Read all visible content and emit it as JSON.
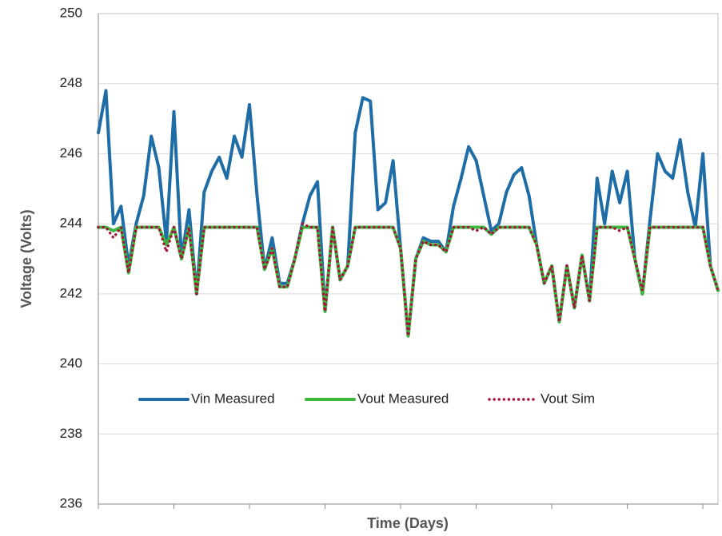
{
  "chart_data": {
    "type": "line",
    "x_label": "Time (Days)",
    "y_label": "Voltage (Volts)",
    "ylim": [
      236,
      250
    ],
    "yticks": [
      236,
      238,
      240,
      242,
      244,
      246,
      248,
      250
    ],
    "grid": true,
    "legend": "center",
    "categories": [
      null,
      null,
      null,
      null,
      null,
      null,
      null,
      null,
      null,
      null,
      null,
      null,
      null,
      null,
      null,
      null,
      null,
      null,
      null,
      null,
      null,
      null,
      null,
      null,
      null,
      null,
      null,
      null,
      null,
      null,
      null,
      null,
      null,
      null,
      null,
      null,
      null,
      null,
      null,
      null,
      null,
      null,
      null,
      null,
      null,
      null,
      null,
      null,
      null,
      null,
      null,
      null,
      null,
      null,
      null,
      null,
      null,
      null,
      null,
      null,
      null,
      null,
      null,
      null,
      null,
      null,
      null,
      null,
      null,
      null,
      null,
      null,
      null,
      null,
      null,
      null,
      null,
      null,
      null,
      null,
      null,
      null,
      null
    ],
    "series": [
      {
        "name": "Vin Measured",
        "color": "#1f6da6",
        "dash": "solid",
        "values": [
          246.6,
          247.8,
          244.0,
          244.5,
          242.8,
          244.0,
          244.8,
          246.5,
          245.6,
          243.5,
          247.2,
          243.0,
          244.4,
          242.0,
          244.9,
          245.5,
          245.9,
          245.3,
          246.5,
          245.9,
          247.4,
          244.8,
          242.7,
          243.6,
          242.3,
          242.3,
          243.0,
          244.0,
          244.8,
          245.2,
          241.5,
          243.9,
          242.4,
          242.8,
          246.6,
          247.6,
          247.5,
          244.4,
          244.6,
          245.8,
          243.3,
          240.8,
          243.0,
          243.6,
          243.5,
          243.5,
          243.2,
          244.5,
          245.3,
          246.2,
          245.8,
          244.8,
          243.8,
          244.0,
          244.9,
          245.4,
          245.6,
          244.8,
          243.4,
          242.3,
          242.8,
          241.2,
          242.8,
          241.6,
          243.1,
          241.8,
          245.3,
          244.0,
          245.5,
          244.6,
          245.5,
          243.0,
          242.0,
          244.1,
          246.0,
          245.5,
          245.3,
          246.4,
          244.9,
          243.9,
          246.0,
          242.8,
          242.1
        ]
      },
      {
        "name": "Vout Measured",
        "color": "#3cb93c",
        "dash": "solid",
        "values": [
          243.9,
          243.9,
          243.8,
          243.9,
          242.6,
          243.9,
          243.9,
          243.9,
          243.9,
          243.4,
          243.9,
          243.0,
          243.9,
          242.0,
          243.9,
          243.9,
          243.9,
          243.9,
          243.9,
          243.9,
          243.9,
          243.9,
          242.7,
          243.3,
          242.2,
          242.2,
          243.0,
          243.9,
          243.9,
          243.9,
          241.5,
          243.9,
          242.4,
          242.8,
          243.9,
          243.9,
          243.9,
          243.9,
          243.9,
          243.9,
          243.3,
          240.8,
          243.0,
          243.5,
          243.4,
          243.4,
          243.2,
          243.9,
          243.9,
          243.9,
          243.9,
          243.9,
          243.7,
          243.9,
          243.9,
          243.9,
          243.9,
          243.9,
          243.4,
          242.3,
          242.8,
          241.2,
          242.8,
          241.6,
          243.1,
          241.8,
          243.9,
          243.9,
          243.9,
          243.9,
          243.9,
          243.0,
          242.0,
          243.9,
          243.9,
          243.9,
          243.9,
          243.9,
          243.9,
          243.9,
          243.9,
          242.8,
          242.1
        ]
      },
      {
        "name": "Vout Sim",
        "color": "#a3173d",
        "dash": "dot",
        "values": [
          243.9,
          243.9,
          243.6,
          243.9,
          242.6,
          243.9,
          243.9,
          243.9,
          243.9,
          243.2,
          243.9,
          243.0,
          243.9,
          242.0,
          243.9,
          243.9,
          243.9,
          243.9,
          243.9,
          243.9,
          243.9,
          243.9,
          242.7,
          243.3,
          242.2,
          242.2,
          243.0,
          244.0,
          243.9,
          243.9,
          241.5,
          243.9,
          242.4,
          242.8,
          243.9,
          243.9,
          243.9,
          243.9,
          243.9,
          243.9,
          243.3,
          240.8,
          243.0,
          243.5,
          243.4,
          243.4,
          243.2,
          243.9,
          243.9,
          243.9,
          243.8,
          243.9,
          243.7,
          243.9,
          243.9,
          243.9,
          243.9,
          243.9,
          243.4,
          242.3,
          242.8,
          241.2,
          242.8,
          241.6,
          243.1,
          241.8,
          243.9,
          243.9,
          243.9,
          243.8,
          243.9,
          243.0,
          242.1,
          243.9,
          243.9,
          243.9,
          243.9,
          243.9,
          243.9,
          243.9,
          243.9,
          242.8,
          242.1
        ]
      }
    ]
  }
}
